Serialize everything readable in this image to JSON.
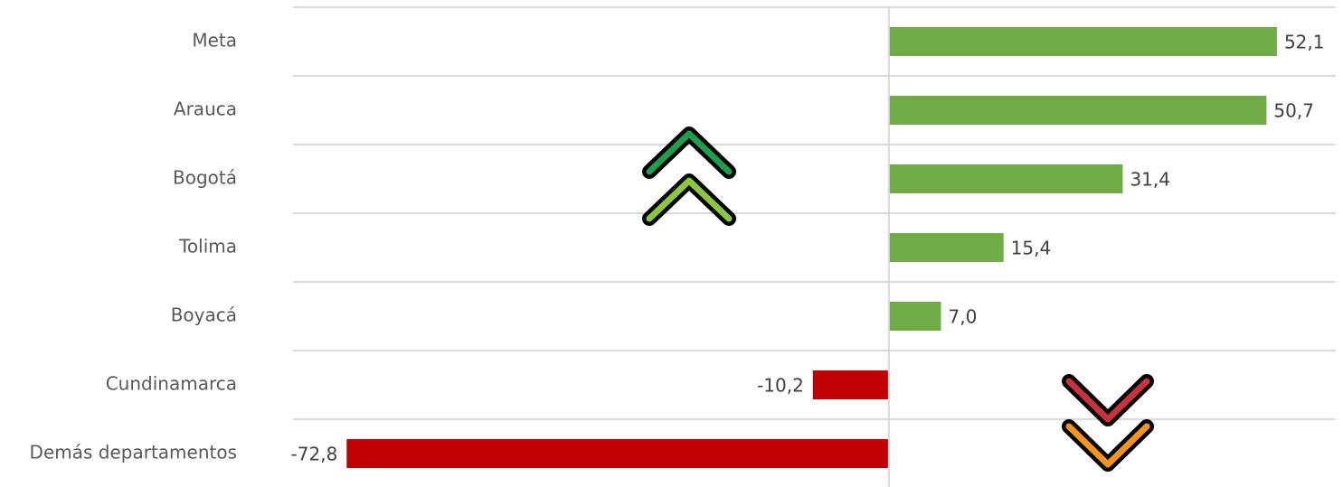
{
  "chart_data": {
    "type": "barh",
    "categories": [
      "Meta",
      "Arauca",
      "Bogotá",
      "Tolima",
      "Boyacá",
      "Cundinamarca",
      "Demás departamentos"
    ],
    "values": [
      52.1,
      50.7,
      31.4,
      15.4,
      7.0,
      -10.2,
      -72.8
    ],
    "value_labels": [
      "52,1",
      "50,7",
      "31,4",
      "15,4",
      "7,0",
      "-10,2",
      "-72,8"
    ],
    "colors": [
      "#70ad47",
      "#70ad47",
      "#70ad47",
      "#70ad47",
      "#70ad47",
      "#c00000",
      "#c00000"
    ],
    "xlim": [
      -80,
      60
    ]
  }
}
